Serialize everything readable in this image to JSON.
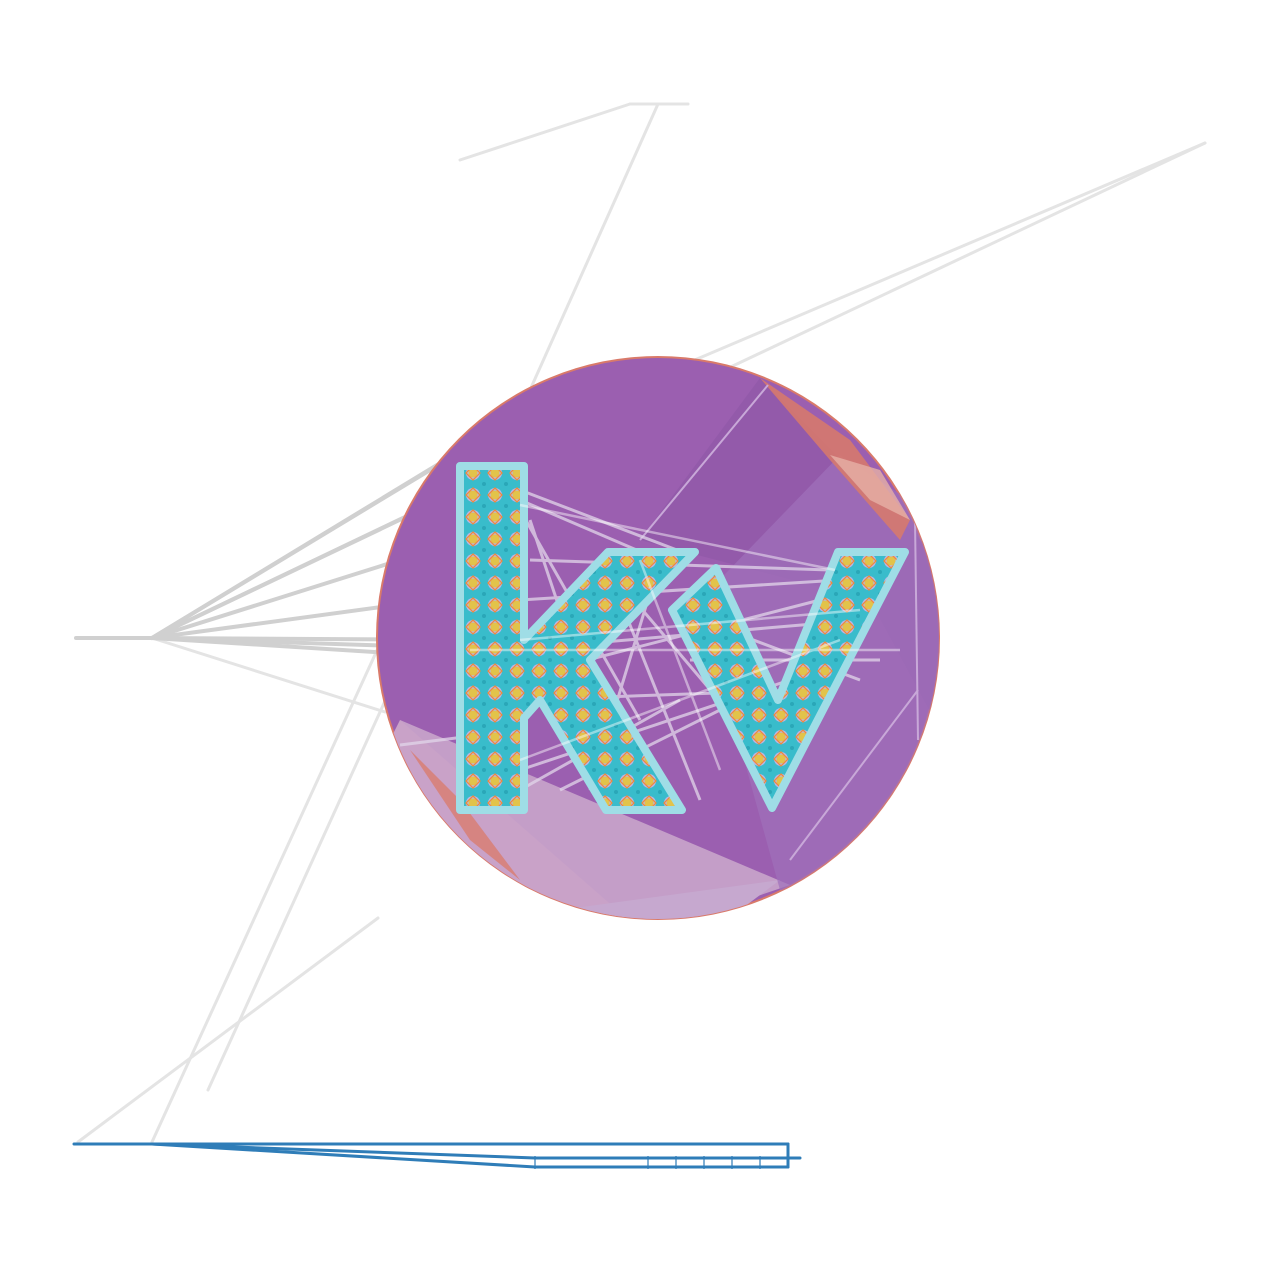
{
  "logo": {
    "text": "kv",
    "colors": {
      "disc": "#9b5fb0",
      "disc_dark": "#8d55a6",
      "disc_light": "#a070bb",
      "pink_wedge": "#c9a2c8",
      "orange_edge": "#d97a6a",
      "letter_fill": "#3fc0cf",
      "letter_outline": "#9fdde6",
      "pattern_yellow": "#e2c34a",
      "pattern_orange": "#f08a3c",
      "pattern_lavender": "#b9b6e8",
      "web_line": "#cfcfcf",
      "web_line_light": "#e6e6e6",
      "blue_line": "#2f7db8"
    }
  }
}
